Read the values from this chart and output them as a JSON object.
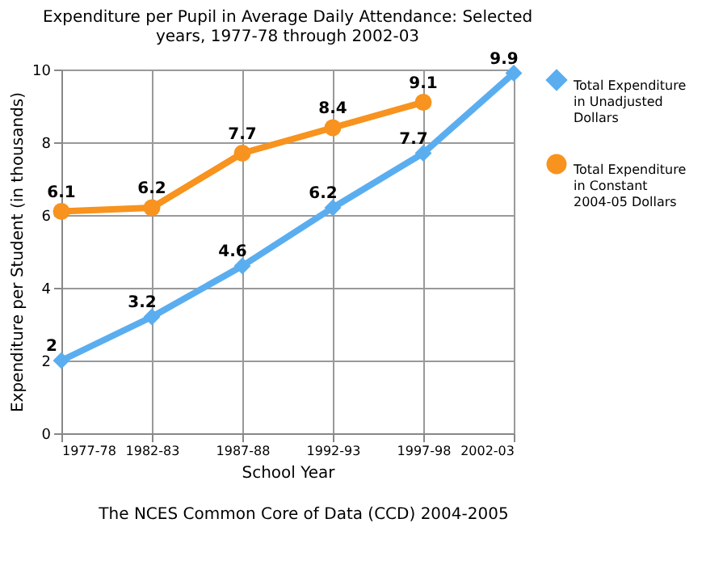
{
  "chart_data": {
    "type": "line",
    "title": [
      "Expenditure per Pupil in Average Daily Attendance: Selected",
      "years, 1977-78 through 2002-03"
    ],
    "xlabel": "School Year",
    "ylabel": "Expenditure per Student (in thousands)",
    "categories": [
      "1977-78",
      "1982-83",
      "1987-88",
      "1992-93",
      "1997-98",
      "2002-03"
    ],
    "series": [
      {
        "name": "Total Expenditure in Unadjusted Dollars",
        "color": "#5aaef0",
        "values": [
          2,
          3.2,
          4.6,
          6.2,
          7.7,
          9.9
        ],
        "marker": "diamond"
      },
      {
        "name": "Total Expenditure in Constant 2004-05 Dollars",
        "color": "#f7931e",
        "values": [
          6.1,
          6.2,
          7.7,
          8.4,
          9.1,
          null
        ],
        "marker": "circle"
      }
    ],
    "ylim": [
      0,
      10
    ],
    "yticks": [
      0,
      2,
      4,
      6,
      8,
      10
    ],
    "grid": true,
    "legend": "right",
    "data_labels": true,
    "annotations": [
      "The NCES Common Core of Data (CCD) 2004-2005"
    ]
  }
}
